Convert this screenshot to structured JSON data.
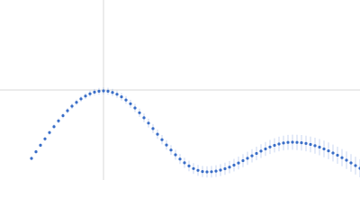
{
  "chart_data": {
    "type": "scatter",
    "x": [
      35,
      40,
      45,
      50,
      55,
      60,
      65,
      70,
      75,
      80,
      85,
      90,
      95,
      100,
      105,
      110,
      115,
      120,
      125,
      130,
      135,
      140,
      145,
      150,
      155,
      160,
      165,
      170,
      175,
      180,
      185,
      190,
      195,
      200,
      205,
      210,
      215,
      220,
      225,
      230,
      235,
      240,
      245,
      250,
      255,
      260,
      265,
      270,
      275,
      280,
      285,
      290,
      295,
      300,
      305,
      310,
      315,
      320,
      325,
      330,
      335,
      340,
      345,
      350,
      355,
      360,
      365,
      370,
      375,
      380,
      385,
      390,
      395,
      400
    ],
    "series": [
      {
        "color": "#3a6ec8",
        "values": [
          24,
          31.4,
          38.6,
          45.7,
          52.7,
          59.3,
          65.7,
          71.5,
          77,
          82,
          86.3,
          90.1,
          93.3,
          95.8,
          97.6,
          98.6,
          99,
          98.6,
          97.3,
          95.3,
          92.4,
          88.9,
          84.7,
          80,
          74.7,
          69.1,
          63.2,
          57.1,
          50.9,
          44.8,
          38.9,
          33.3,
          28,
          23.3,
          19.1,
          15.6,
          12.7,
          10.7,
          9.4,
          9,
          9.2,
          9.9,
          11,
          12.5,
          14.3,
          16.5,
          18.9,
          21.5,
          24.1,
          26.9,
          29.5,
          32.1,
          34.5,
          36.7,
          38.5,
          40,
          41.1,
          41.8,
          42,
          41.8,
          41.4,
          40.6,
          39.5,
          38.1,
          36.5,
          34.5,
          32.4,
          30,
          27.5,
          24.8,
          22,
          19,
          16,
          13
        ],
        "errors": [
          2,
          2.1,
          2.2,
          2.3,
          2.4,
          2.6,
          2.7,
          2.8,
          2.9,
          3,
          3.1,
          3.2,
          3.3,
          3.4,
          3.5,
          3.7,
          3.8,
          3.9,
          4,
          4.1,
          4.2,
          4.3,
          4.4,
          4.5,
          4.6,
          4.8,
          4.9,
          5,
          5.1,
          5.2,
          5.3,
          5.4,
          5.5,
          5.6,
          5.7,
          5.9,
          6,
          6.1,
          6.2,
          6.3,
          6.4,
          6.5,
          6.6,
          6.7,
          6.8,
          7,
          7.1,
          7.2,
          7.3,
          7.4,
          7.5,
          7.6,
          7.7,
          7.8,
          7.9,
          8.1,
          8.2,
          8.3,
          8.4,
          8.5,
          8.6,
          8.7,
          8.8,
          8.9,
          9,
          9.2,
          9.3,
          9.4,
          9.5,
          9.6,
          9.7,
          9.8,
          9.9,
          10
        ]
      }
    ],
    "xlim": [
      0,
      400
    ],
    "ylim": [
      0,
      200
    ],
    "xticks": [
      115
    ],
    "yticks": [
      100
    ],
    "grid": true
  }
}
